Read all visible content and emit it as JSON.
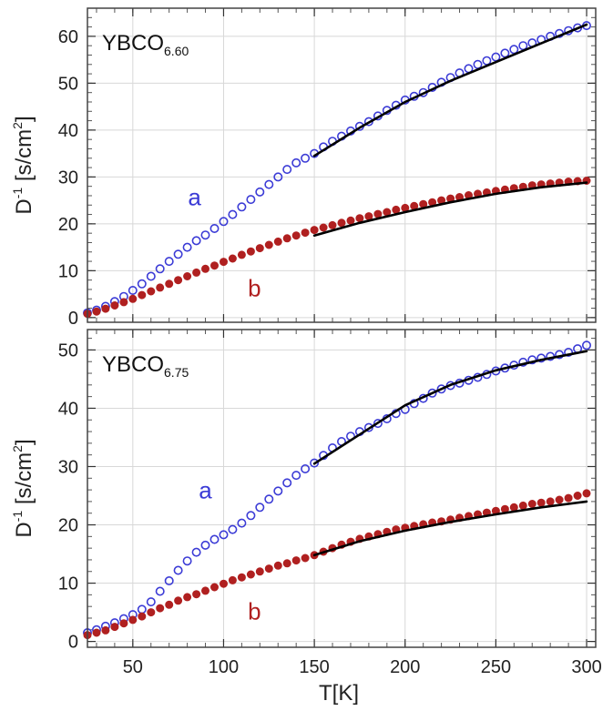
{
  "colors": {
    "series_a": "#3b3bd6",
    "series_b": "#b02020",
    "fit": "#000000",
    "grid": "#d8d8d8"
  },
  "figure": {
    "xlabel": "T[K]"
  },
  "chart_data": [
    {
      "type": "scatter",
      "panel_label": {
        "main": "YBCO",
        "sub": "6.60"
      },
      "ylabel": {
        "main": "D",
        "sup": "-1",
        "unit_pre": " [s/cm",
        "unit_sup": "2",
        "unit_post": "]"
      },
      "xlim": [
        25,
        305
      ],
      "ylim": [
        -1,
        66
      ],
      "xticks": [
        50,
        100,
        150,
        200,
        250,
        300
      ],
      "yticks": [
        0,
        10,
        20,
        30,
        40,
        50,
        60
      ],
      "grid": true,
      "series": [
        {
          "name": "a",
          "marker": "open-circle",
          "x": [
            25,
            30,
            35,
            40,
            45,
            50,
            55,
            60,
            65,
            70,
            75,
            80,
            85,
            90,
            95,
            100,
            105,
            110,
            115,
            120,
            125,
            130,
            135,
            140,
            145,
            150,
            155,
            160,
            165,
            170,
            175,
            180,
            185,
            190,
            195,
            200,
            205,
            210,
            215,
            220,
            225,
            230,
            235,
            240,
            245,
            250,
            255,
            260,
            265,
            270,
            275,
            280,
            285,
            290,
            295,
            300
          ],
          "y": [
            1,
            1.6,
            2.4,
            3.4,
            4.5,
            5.8,
            7.2,
            8.8,
            10.4,
            12,
            13.5,
            15,
            16.4,
            17.6,
            19,
            20.5,
            22,
            23.6,
            25.2,
            26.8,
            28.4,
            30,
            31.6,
            33,
            34,
            35,
            36.4,
            37.6,
            38.7,
            39.8,
            40.8,
            41.8,
            43,
            44.2,
            45.3,
            46.4,
            47.2,
            48,
            49.1,
            50.2,
            51.2,
            52.2,
            53.1,
            54,
            54.8,
            55.6,
            56.4,
            57.2,
            58,
            58.6,
            59.3,
            60,
            60.6,
            61.2,
            61.8,
            62.3
          ]
        },
        {
          "name": "b",
          "marker": "filled-circle",
          "x": [
            25,
            30,
            35,
            40,
            45,
            50,
            55,
            60,
            65,
            70,
            75,
            80,
            85,
            90,
            95,
            100,
            105,
            110,
            115,
            120,
            125,
            130,
            135,
            140,
            145,
            150,
            155,
            160,
            165,
            170,
            175,
            180,
            185,
            190,
            195,
            200,
            205,
            210,
            215,
            220,
            225,
            230,
            235,
            240,
            245,
            250,
            255,
            260,
            265,
            270,
            275,
            280,
            285,
            290,
            295,
            300
          ],
          "y": [
            0.8,
            1.3,
            1.9,
            2.6,
            3.3,
            4,
            4.8,
            5.6,
            6.4,
            7.2,
            8,
            8.8,
            9.6,
            10.4,
            11.1,
            11.9,
            12.6,
            13.4,
            14.1,
            14.8,
            15.5,
            16.2,
            16.9,
            17.5,
            18.1,
            18.7,
            19.2,
            19.7,
            20.2,
            20.7,
            21.2,
            21.6,
            22.1,
            22.5,
            23,
            23.4,
            23.8,
            24.2,
            24.6,
            25,
            25.4,
            25.7,
            26.1,
            26.4,
            26.7,
            27,
            27.3,
            27.6,
            27.9,
            28.2,
            28.4,
            28.6,
            28.8,
            29,
            29.1,
            29.2
          ]
        },
        {
          "name": "fit a",
          "style": "line",
          "x": [
            150,
            175,
            200,
            225,
            250,
            275,
            300
          ],
          "y": [
            34.5,
            40.5,
            46,
            50.5,
            54.5,
            58.5,
            62.5
          ]
        },
        {
          "name": "fit b",
          "style": "line",
          "x": [
            150,
            175,
            200,
            225,
            250,
            275,
            300
          ],
          "y": [
            17.5,
            20.2,
            22.5,
            24.6,
            26.4,
            27.8,
            28.8
          ]
        }
      ],
      "annotations": [
        {
          "text": "a",
          "series": "series_a",
          "x": 84,
          "y": 24
        },
        {
          "text": "b",
          "series": "series_b",
          "x": 117,
          "y": 4.5
        }
      ]
    },
    {
      "type": "scatter",
      "panel_label": {
        "main": "YBCO",
        "sub": "6.75"
      },
      "ylabel": {
        "main": "D",
        "sup": "-1",
        "unit_pre": " [s/cm",
        "unit_sup": "2",
        "unit_post": "]"
      },
      "xlim": [
        25,
        305
      ],
      "ylim": [
        -1,
        53.5
      ],
      "xticks": [
        50,
        100,
        150,
        200,
        250,
        300
      ],
      "yticks": [
        0,
        10,
        20,
        30,
        40,
        50
      ],
      "grid": true,
      "series": [
        {
          "name": "a",
          "marker": "open-circle",
          "x": [
            25,
            30,
            35,
            40,
            45,
            50,
            55,
            60,
            65,
            70,
            75,
            80,
            85,
            90,
            95,
            100,
            105,
            110,
            115,
            120,
            125,
            130,
            135,
            140,
            145,
            150,
            155,
            160,
            165,
            170,
            175,
            180,
            185,
            190,
            195,
            200,
            205,
            210,
            215,
            220,
            225,
            230,
            235,
            240,
            245,
            250,
            255,
            260,
            265,
            270,
            275,
            280,
            285,
            290,
            295,
            300
          ],
          "y": [
            1.5,
            2,
            2.6,
            3.2,
            3.9,
            4.6,
            5.5,
            6.8,
            8.6,
            10.4,
            12.2,
            13.8,
            15.3,
            16.5,
            17.5,
            18.3,
            19.2,
            20.3,
            21.6,
            23,
            24.4,
            25.8,
            27.2,
            28.5,
            29.6,
            30.6,
            31.9,
            33.2,
            34.3,
            35.2,
            36,
            36.7,
            37.4,
            38.2,
            39.1,
            39.8,
            40.8,
            41.7,
            42.6,
            43.3,
            43.9,
            44.3,
            44.8,
            45.3,
            45.8,
            46.4,
            46.9,
            47.4,
            47.9,
            48.3,
            48.6,
            48.9,
            49.2,
            49.6,
            50.2,
            50.8
          ]
        },
        {
          "name": "b",
          "marker": "filled-circle",
          "x": [
            25,
            30,
            35,
            40,
            45,
            50,
            55,
            60,
            65,
            70,
            75,
            80,
            85,
            90,
            95,
            100,
            105,
            110,
            115,
            120,
            125,
            130,
            135,
            140,
            145,
            150,
            155,
            160,
            165,
            170,
            175,
            180,
            185,
            190,
            195,
            200,
            205,
            210,
            215,
            220,
            225,
            230,
            235,
            240,
            245,
            250,
            255,
            260,
            265,
            270,
            275,
            280,
            285,
            290,
            295,
            300
          ],
          "y": [
            1.1,
            1.5,
            1.9,
            2.5,
            3.1,
            3.7,
            4.3,
            5,
            5.7,
            6.3,
            7,
            7.6,
            8.1,
            8.7,
            9.3,
            9.9,
            10.5,
            11,
            11.5,
            12,
            12.5,
            13,
            13.4,
            13.9,
            14.3,
            14.8,
            15.4,
            16,
            16.6,
            17.1,
            17.6,
            18,
            18.4,
            18.8,
            19.2,
            19.5,
            19.8,
            20.1,
            20.4,
            20.6,
            20.9,
            21.2,
            21.5,
            21.8,
            22.1,
            22.4,
            22.7,
            23,
            23.3,
            23.6,
            23.8,
            24,
            24.3,
            24.6,
            25,
            25.4
          ]
        },
        {
          "name": "fit a",
          "style": "line",
          "x": [
            150,
            175,
            200,
            225,
            250,
            275,
            300
          ],
          "y": [
            30.5,
            35.5,
            40.5,
            44,
            46.5,
            48.3,
            49.8
          ]
        },
        {
          "name": "fit b",
          "style": "line",
          "x": [
            150,
            175,
            200,
            225,
            250,
            275,
            300
          ],
          "y": [
            14.8,
            17.2,
            19,
            20.5,
            21.8,
            23,
            24
          ]
        }
      ],
      "annotations": [
        {
          "text": "a",
          "series": "series_a",
          "x": 90,
          "y": 24.5
        },
        {
          "text": "b",
          "series": "series_b",
          "x": 117,
          "y": 3.8
        }
      ]
    }
  ]
}
